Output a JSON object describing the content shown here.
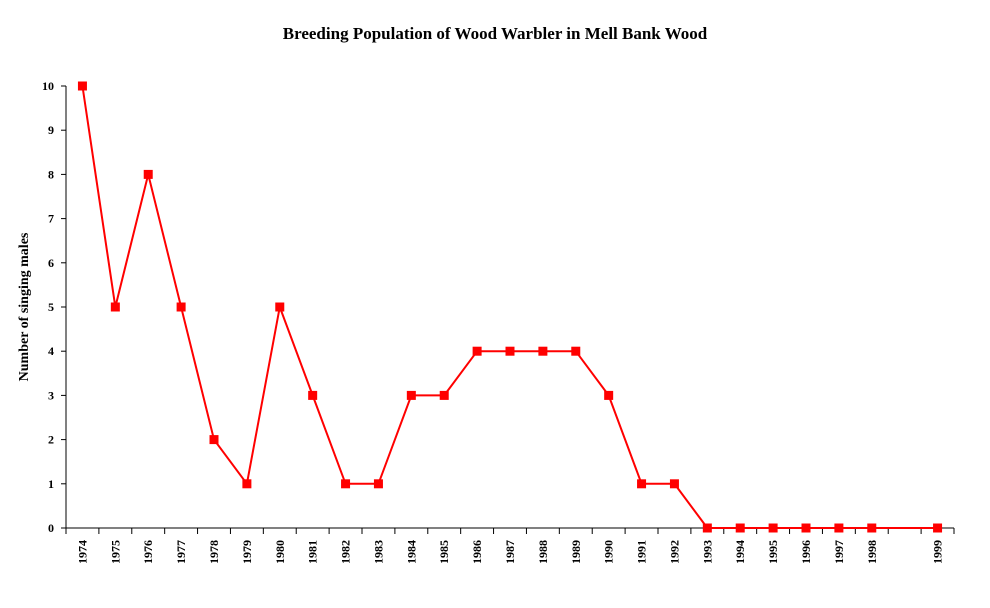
{
  "chart_data": {
    "type": "line",
    "title": "Breeding Population of Wood Warbler in Mell Bank Wood",
    "xlabel": "",
    "ylabel": "Number of singing males",
    "x_ticks": [
      "1974",
      "1975",
      "1976",
      "1977",
      "1978",
      "1979",
      "1980",
      "1981",
      "1982",
      "1983",
      "1984",
      "1985",
      "1986",
      "1987",
      "1988",
      "1989",
      "1990",
      "1991",
      "1992",
      "1993",
      "1994",
      "1995",
      "1996",
      "1997",
      "1998",
      "",
      "1999"
    ],
    "series": [
      {
        "name": "",
        "color": "#ff0000",
        "marker": "square",
        "points": [
          {
            "x": "1974",
            "y": 10
          },
          {
            "x": "1975",
            "y": 5
          },
          {
            "x": "1976",
            "y": 8
          },
          {
            "x": "1977",
            "y": 5
          },
          {
            "x": "1978",
            "y": 2
          },
          {
            "x": "1979",
            "y": 1
          },
          {
            "x": "1980",
            "y": 5
          },
          {
            "x": "1981",
            "y": 3
          },
          {
            "x": "1982",
            "y": 1
          },
          {
            "x": "1983",
            "y": 1
          },
          {
            "x": "1984",
            "y": 3
          },
          {
            "x": "1985",
            "y": 3
          },
          {
            "x": "1986",
            "y": 4
          },
          {
            "x": "1987",
            "y": 4
          },
          {
            "x": "1988",
            "y": 4
          },
          {
            "x": "1989",
            "y": 4
          },
          {
            "x": "1990",
            "y": 3
          },
          {
            "x": "1991",
            "y": 1
          },
          {
            "x": "1992",
            "y": 1
          },
          {
            "x": "1993",
            "y": 0
          },
          {
            "x": "1994",
            "y": 0
          },
          {
            "x": "1995",
            "y": 0
          },
          {
            "x": "1996",
            "y": 0
          },
          {
            "x": "1997",
            "y": 0
          },
          {
            "x": "1998",
            "y": 0
          },
          {
            "x": "1999",
            "y": 0
          }
        ]
      }
    ],
    "y_ticks": [
      "0",
      "1",
      "2",
      "3",
      "4",
      "5",
      "6",
      "7",
      "8",
      "9",
      "10"
    ],
    "ylim": [
      0,
      10
    ],
    "grid": false,
    "legend": "none"
  }
}
